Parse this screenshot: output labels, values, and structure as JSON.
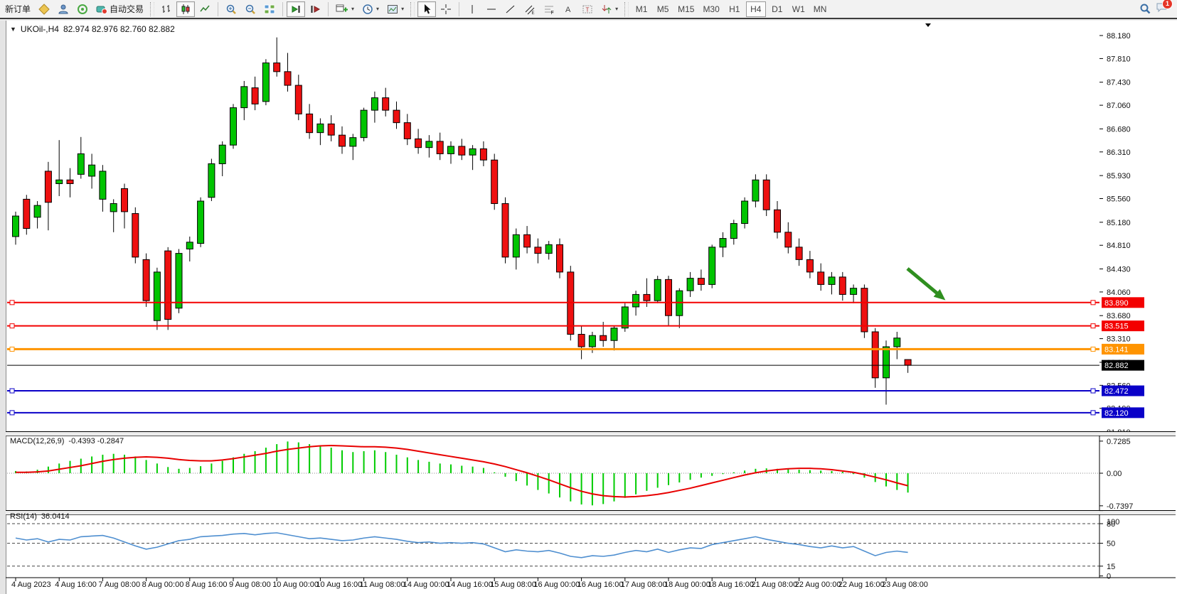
{
  "toolbar": {
    "new_order_label": "新订单",
    "auto_trading_label": "自动交易",
    "timeframes": [
      "M1",
      "M5",
      "M15",
      "M30",
      "H1",
      "H4",
      "D1",
      "W1",
      "MN"
    ],
    "active_timeframe": "H4",
    "notification_count": "1"
  },
  "chart": {
    "title_symbol": "UKOil-,H4",
    "title_ohlc": "82.974 82.976 82.760 82.882"
  },
  "chart_data": {
    "type": "candlestick",
    "symbol": "UKOil-",
    "period": "H4",
    "current_bar": {
      "open": 82.974,
      "high": 82.976,
      "low": 82.76,
      "close": 82.882
    },
    "y_axis_ticks": [
      "88.180",
      "87.810",
      "87.430",
      "87.060",
      "86.680",
      "86.310",
      "85.930",
      "85.560",
      "85.180",
      "84.810",
      "84.430",
      "84.060",
      "83.680",
      "83.310",
      "82.930",
      "82.560",
      "82.190",
      "81.810"
    ],
    "x_labels": [
      [
        0,
        "4 Aug 2023"
      ],
      [
        4,
        "4 Aug 16:00"
      ],
      [
        8,
        "7 Aug 08:00"
      ],
      [
        12,
        "8 Aug 00:00"
      ],
      [
        16,
        "8 Aug 16:00"
      ],
      [
        20,
        "9 Aug 08:00"
      ],
      [
        24,
        "10 Aug 00:00"
      ],
      [
        28,
        "10 Aug 16:00"
      ],
      [
        32,
        "11 Aug 08:00"
      ],
      [
        36,
        "14 Aug 00:00"
      ],
      [
        40,
        "14 Aug 16:00"
      ],
      [
        44,
        "15 Aug 08:00"
      ],
      [
        48,
        "16 Aug 00:00"
      ],
      [
        52,
        "16 Aug 16:00"
      ],
      [
        56,
        "17 Aug 08:00"
      ],
      [
        60,
        "18 Aug 00:00"
      ],
      [
        64,
        "18 Aug 16:00"
      ],
      [
        68,
        "21 Aug 08:00"
      ],
      [
        72,
        "22 Aug 00:00"
      ],
      [
        76,
        "22 Aug 16:00"
      ],
      [
        80,
        "23 Aug 08:00"
      ]
    ],
    "horizontal_lines": [
      {
        "price": 83.89,
        "label": "83.890",
        "color": "#f30000",
        "width": 2,
        "handles": true
      },
      {
        "price": 83.515,
        "label": "83.515",
        "color": "#f30000",
        "width": 2,
        "handles": true
      },
      {
        "price": 83.141,
        "label": "83.141",
        "color": "#ff9400",
        "width": 3,
        "handles": true
      },
      {
        "price": 82.882,
        "label": "82.882",
        "color": "#000000",
        "width": 1,
        "handles": false,
        "role": "current-price-line"
      },
      {
        "price": 82.472,
        "label": "82.472",
        "color": "#0a00c8",
        "width": 2,
        "handles": true
      },
      {
        "price": 82.12,
        "label": "82.120",
        "color": "#0a00c8",
        "width": 2,
        "handles": true
      }
    ],
    "candles": [
      [
        "4 Aug 00:00",
        84.95,
        85.35,
        84.82,
        85.28
      ],
      [
        "4 Aug 04:00",
        85.55,
        85.62,
        84.98,
        85.08
      ],
      [
        "4 Aug 08:00",
        85.26,
        85.52,
        85.08,
        85.45
      ],
      [
        "4 Aug 12:00",
        86.0,
        86.15,
        85.05,
        85.5
      ],
      [
        "4 Aug 16:00",
        85.8,
        86.5,
        85.6,
        85.86
      ],
      [
        "4 Aug 20:00",
        85.86,
        86.05,
        85.58,
        85.8
      ],
      [
        "7 Aug 00:00",
        85.95,
        86.55,
        85.88,
        86.28
      ],
      [
        "7 Aug 04:00",
        85.92,
        86.28,
        85.72,
        86.1
      ],
      [
        "7 Aug 08:00",
        85.55,
        86.1,
        85.35,
        86.0
      ],
      [
        "7 Aug 12:00",
        85.35,
        85.55,
        85.02,
        85.48
      ],
      [
        "7 Aug 16:00",
        85.72,
        85.8,
        85.08,
        85.35
      ],
      [
        "7 Aug 20:00",
        85.32,
        85.42,
        84.52,
        84.62
      ],
      [
        "8 Aug 00:00",
        84.58,
        84.68,
        83.82,
        83.92
      ],
      [
        "8 Aug 04:00",
        83.6,
        84.45,
        83.45,
        84.38
      ],
      [
        "8 Aug 08:00",
        84.72,
        84.78,
        83.45,
        83.62
      ],
      [
        "8 Aug 12:00",
        83.8,
        84.75,
        83.72,
        84.68
      ],
      [
        "8 Aug 16:00",
        84.75,
        84.95,
        84.55,
        84.86
      ],
      [
        "8 Aug 20:00",
        84.84,
        85.58,
        84.78,
        85.52
      ],
      [
        "9 Aug 00:00",
        85.58,
        86.2,
        85.52,
        86.12
      ],
      [
        "9 Aug 04:00",
        86.12,
        86.48,
        85.92,
        86.42
      ],
      [
        "9 Aug 08:00",
        86.42,
        87.08,
        86.36,
        87.02
      ],
      [
        "9 Aug 12:00",
        87.02,
        87.45,
        86.82,
        87.36
      ],
      [
        "9 Aug 16:00",
        87.34,
        87.52,
        86.98,
        87.08
      ],
      [
        "9 Aug 20:00",
        87.12,
        87.8,
        87.06,
        87.74
      ],
      [
        "10 Aug 00:00",
        87.74,
        88.15,
        87.52,
        87.6
      ],
      [
        "10 Aug 04:00",
        87.6,
        87.9,
        87.28,
        87.38
      ],
      [
        "10 Aug 08:00",
        87.38,
        87.55,
        86.82,
        86.92
      ],
      [
        "10 Aug 12:00",
        86.92,
        87.08,
        86.52,
        86.62
      ],
      [
        "10 Aug 16:00",
        86.62,
        86.85,
        86.42,
        86.76
      ],
      [
        "10 Aug 20:00",
        86.76,
        86.9,
        86.48,
        86.58
      ],
      [
        "11 Aug 00:00",
        86.58,
        86.72,
        86.28,
        86.4
      ],
      [
        "11 Aug 04:00",
        86.4,
        86.6,
        86.18,
        86.54
      ],
      [
        "11 Aug 08:00",
        86.54,
        87.02,
        86.48,
        86.98
      ],
      [
        "11 Aug 12:00",
        86.98,
        87.28,
        86.78,
        87.18
      ],
      [
        "11 Aug 16:00",
        87.18,
        87.34,
        86.88,
        86.98
      ],
      [
        "11 Aug 20:00",
        86.98,
        87.12,
        86.68,
        86.78
      ],
      [
        "14 Aug 00:00",
        86.78,
        86.92,
        86.42,
        86.52
      ],
      [
        "14 Aug 04:00",
        86.52,
        86.68,
        86.28,
        86.38
      ],
      [
        "14 Aug 08:00",
        86.38,
        86.58,
        86.22,
        86.48
      ],
      [
        "14 Aug 12:00",
        86.48,
        86.62,
        86.18,
        86.28
      ],
      [
        "14 Aug 16:00",
        86.28,
        86.48,
        86.12,
        86.4
      ],
      [
        "14 Aug 20:00",
        86.4,
        86.52,
        86.18,
        86.26
      ],
      [
        "15 Aug 00:00",
        86.26,
        86.42,
        86.02,
        86.36
      ],
      [
        "15 Aug 04:00",
        86.36,
        86.48,
        86.08,
        86.18
      ],
      [
        "15 Aug 08:00",
        86.18,
        86.28,
        85.38,
        85.48
      ],
      [
        "15 Aug 12:00",
        85.48,
        85.58,
        84.52,
        84.62
      ],
      [
        "15 Aug 16:00",
        84.62,
        85.08,
        84.42,
        84.98
      ],
      [
        "15 Aug 20:00",
        84.98,
        85.12,
        84.68,
        84.78
      ],
      [
        "16 Aug 00:00",
        84.78,
        84.92,
        84.52,
        84.68
      ],
      [
        "16 Aug 04:00",
        84.68,
        84.88,
        84.58,
        84.82
      ],
      [
        "16 Aug 08:00",
        84.82,
        84.92,
        84.28,
        84.38
      ],
      [
        "16 Aug 12:00",
        84.38,
        84.48,
        83.28,
        83.38
      ],
      [
        "16 Aug 16:00",
        83.38,
        83.52,
        82.98,
        83.18
      ],
      [
        "16 Aug 20:00",
        83.18,
        83.42,
        83.08,
        83.36
      ],
      [
        "17 Aug 00:00",
        83.36,
        83.58,
        83.18,
        83.28
      ],
      [
        "17 Aug 04:00",
        83.28,
        83.52,
        83.12,
        83.48
      ],
      [
        "17 Aug 08:00",
        83.48,
        83.88,
        83.42,
        83.82
      ],
      [
        "17 Aug 12:00",
        83.82,
        84.08,
        83.68,
        84.02
      ],
      [
        "17 Aug 16:00",
        84.02,
        84.28,
        83.82,
        83.92
      ],
      [
        "17 Aug 20:00",
        83.92,
        84.32,
        83.88,
        84.26
      ],
      [
        "18 Aug 00:00",
        84.26,
        84.32,
        83.52,
        83.68
      ],
      [
        "18 Aug 04:00",
        83.68,
        84.12,
        83.48,
        84.08
      ],
      [
        "18 Aug 08:00",
        84.08,
        84.38,
        83.98,
        84.28
      ],
      [
        "18 Aug 12:00",
        84.28,
        84.42,
        84.08,
        84.18
      ],
      [
        "18 Aug 16:00",
        84.18,
        84.82,
        84.12,
        84.78
      ],
      [
        "18 Aug 20:00",
        84.78,
        85.02,
        84.62,
        84.92
      ],
      [
        "21 Aug 00:00",
        84.92,
        85.22,
        84.82,
        85.16
      ],
      [
        "21 Aug 04:00",
        85.16,
        85.58,
        85.08,
        85.52
      ],
      [
        "21 Aug 08:00",
        85.52,
        85.95,
        85.42,
        85.86
      ],
      [
        "21 Aug 12:00",
        85.86,
        85.95,
        85.28,
        85.38
      ],
      [
        "21 Aug 16:00",
        85.38,
        85.52,
        84.92,
        85.02
      ],
      [
        "21 Aug 20:00",
        85.02,
        85.18,
        84.68,
        84.78
      ],
      [
        "22 Aug 00:00",
        84.78,
        84.92,
        84.48,
        84.58
      ],
      [
        "22 Aug 04:00",
        84.58,
        84.72,
        84.28,
        84.38
      ],
      [
        "22 Aug 08:00",
        84.38,
        84.52,
        84.08,
        84.18
      ],
      [
        "22 Aug 12:00",
        84.18,
        84.38,
        84.02,
        84.3
      ],
      [
        "22 Aug 16:00",
        84.3,
        84.38,
        83.92,
        84.02
      ],
      [
        "22 Aug 20:00",
        84.02,
        84.18,
        83.88,
        84.12
      ],
      [
        "23 Aug 00:00",
        84.12,
        84.18,
        83.32,
        83.42
      ],
      [
        "23 Aug 04:00",
        83.42,
        83.48,
        82.52,
        82.68
      ],
      [
        "23 Aug 08:00",
        82.68,
        83.28,
        82.25,
        83.18
      ],
      [
        "23 Aug 12:00",
        83.18,
        83.42,
        82.98,
        83.32
      ],
      [
        "23 Aug 16:00",
        82.974,
        82.976,
        82.76,
        82.882
      ]
    ],
    "macd": {
      "label": "MACD(12,26,9)",
      "values_label": "-0.4393 -0.2847",
      "scale_labels": [
        [
          "0.7285",
          0.7285
        ],
        [
          "0.00",
          0
        ],
        [
          "-0.7397",
          -0.7397
        ]
      ],
      "histogram": [
        0.05,
        0.04,
        0.08,
        0.15,
        0.22,
        0.28,
        0.33,
        0.38,
        0.42,
        0.44,
        0.42,
        0.38,
        0.3,
        0.22,
        0.14,
        0.1,
        0.12,
        0.16,
        0.22,
        0.28,
        0.36,
        0.44,
        0.5,
        0.58,
        0.66,
        0.72,
        0.7,
        0.66,
        0.62,
        0.58,
        0.52,
        0.48,
        0.5,
        0.52,
        0.48,
        0.42,
        0.36,
        0.3,
        0.26,
        0.22,
        0.2,
        0.17,
        0.15,
        0.12,
        0.02,
        -0.08,
        -0.18,
        -0.28,
        -0.38,
        -0.46,
        -0.55,
        -0.64,
        -0.71,
        -0.73,
        -0.7,
        -0.64,
        -0.56,
        -0.48,
        -0.4,
        -0.33,
        -0.27,
        -0.21,
        -0.15,
        -0.1,
        -0.06,
        -0.02,
        0.02,
        0.06,
        0.1,
        0.11,
        0.1,
        0.09,
        0.08,
        0.07,
        0.06,
        0.05,
        0.03,
        -0.02,
        -0.1,
        -0.2,
        -0.3,
        -0.38,
        -0.4393
      ],
      "signal": [
        0.02,
        0.02,
        0.03,
        0.05,
        0.09,
        0.13,
        0.17,
        0.22,
        0.27,
        0.31,
        0.34,
        0.36,
        0.37,
        0.36,
        0.34,
        0.31,
        0.29,
        0.28,
        0.28,
        0.3,
        0.33,
        0.37,
        0.41,
        0.45,
        0.5,
        0.54,
        0.57,
        0.6,
        0.62,
        0.63,
        0.62,
        0.61,
        0.6,
        0.6,
        0.59,
        0.57,
        0.54,
        0.5,
        0.46,
        0.42,
        0.38,
        0.34,
        0.3,
        0.26,
        0.21,
        0.15,
        0.08,
        0.01,
        -0.07,
        -0.15,
        -0.24,
        -0.33,
        -0.41,
        -0.47,
        -0.51,
        -0.53,
        -0.54,
        -0.53,
        -0.51,
        -0.48,
        -0.44,
        -0.39,
        -0.34,
        -0.28,
        -0.22,
        -0.16,
        -0.1,
        -0.04,
        0.01,
        0.05,
        0.08,
        0.1,
        0.11,
        0.11,
        0.1,
        0.08,
        0.05,
        0.02,
        -0.03,
        -0.09,
        -0.15,
        -0.22,
        -0.2847
      ]
    },
    "rsi": {
      "label": "RSI(14)",
      "value_label": "36.0414",
      "scale_labels": [
        [
          "100",
          100
        ],
        [
          "80",
          80
        ],
        [
          "50",
          50
        ],
        [
          "15",
          15
        ],
        [
          "0",
          0
        ]
      ],
      "dashed_levels": [
        80,
        50,
        15
      ],
      "values": [
        58,
        55,
        57,
        52,
        56,
        55,
        60,
        61,
        62,
        58,
        52,
        46,
        41,
        44,
        49,
        54,
        56,
        60,
        61,
        62,
        64,
        65,
        63,
        65,
        66,
        63,
        60,
        57,
        58,
        56,
        54,
        55,
        58,
        60,
        58,
        56,
        53,
        51,
        52,
        50,
        51,
        50,
        51,
        49,
        43,
        37,
        40,
        38,
        37,
        39,
        35,
        30,
        28,
        31,
        30,
        32,
        36,
        39,
        37,
        41,
        36,
        40,
        43,
        42,
        48,
        51,
        54,
        57,
        60,
        56,
        53,
        50,
        48,
        45,
        43,
        46,
        43,
        45,
        38,
        31,
        36,
        38,
        36.04
      ]
    },
    "annotation_arrow": {
      "color": "#2f8f1f"
    },
    "colors": {
      "bull": "#00c400",
      "bear": "#ee1010",
      "wick": "#000000",
      "macd_hist": "#00cc00",
      "macd_signal": "#e80000",
      "rsi_line": "#4f8fd0",
      "background": "#ffffff",
      "axis_text": "#111111"
    }
  }
}
